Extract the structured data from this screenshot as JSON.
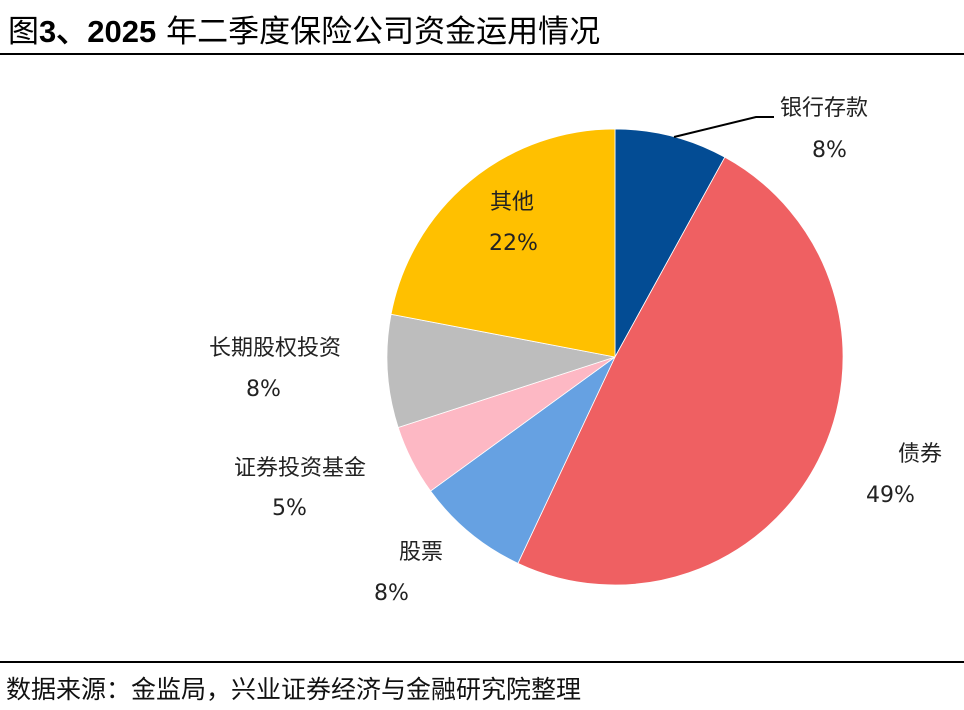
{
  "title": {
    "prefix": "图",
    "number": "3、2025",
    "rest": " 年二季度保险公司资金运用情况"
  },
  "source": "数据来源：金监局，兴业证券经济与金融研究院整理",
  "chart_data": {
    "type": "pie",
    "title": "图3、2025 年二季度保险公司资金运用情况",
    "start_angle_deg": 90,
    "direction": "clockwise",
    "categories": [
      "银行存款",
      "债券",
      "股票",
      "证券投资基金",
      "长期股权投资",
      "其他"
    ],
    "values": [
      8,
      49,
      8,
      5,
      8,
      22
    ],
    "unit": "%",
    "labels": [
      "8%",
      "49%",
      "8%",
      "5%",
      "8%",
      "22%"
    ],
    "colors": [
      "#034C94",
      "#EF6062",
      "#66A1E2",
      "#FDB8C4",
      "#BDBDBD",
      "#FFC000"
    ],
    "legend": "none (data labels with category names)"
  },
  "slices": [
    {
      "name": "银行存款",
      "pct": "8%",
      "color": "#034C94"
    },
    {
      "name": "债券",
      "pct": "49%",
      "color": "#EF6062"
    },
    {
      "name": "股票",
      "pct": "8%",
      "color": "#66A1E2"
    },
    {
      "name": "证券投资基金",
      "pct": "5%",
      "color": "#FDB8C4"
    },
    {
      "name": "长期股权投资",
      "pct": "8%",
      "color": "#BDBDBD"
    },
    {
      "name": "其他",
      "pct": "22%",
      "color": "#FFC000"
    }
  ]
}
